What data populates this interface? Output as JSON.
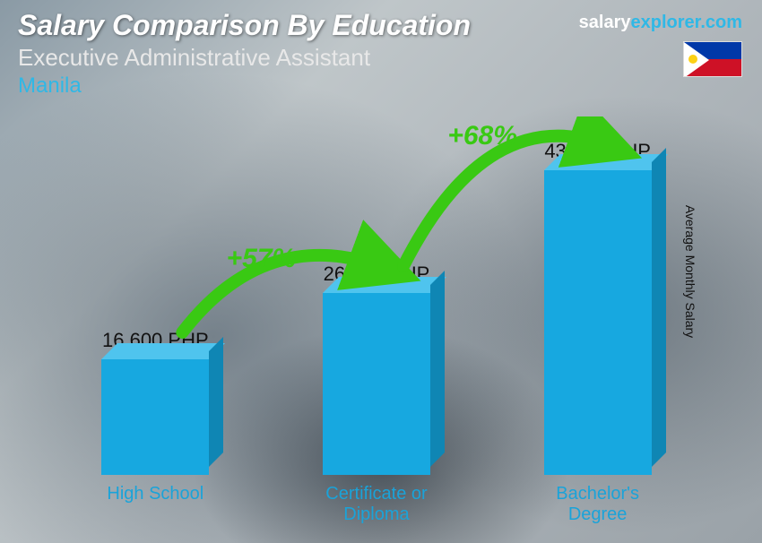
{
  "header": {
    "title": "Salary Comparison By Education",
    "subtitle": "Executive Administrative Assistant",
    "location": "Manila"
  },
  "source": {
    "part1": "salary",
    "part2": "explorer",
    "suffix": ".com"
  },
  "flag": {
    "country": "Philippines"
  },
  "yaxis_label": "Average Monthly Salary",
  "chart": {
    "type": "bar-3d",
    "currency": "PHP",
    "ylim_max": 43800,
    "bar_fill": "#17a8e0",
    "bar_top": "#4fc4ee",
    "bar_side": "#0f86b4",
    "category_color": "#1aa3d9",
    "value_color": "#111111",
    "arrow_color": "#39c913",
    "pct_color": "#39c913",
    "bars": [
      {
        "category": "High School",
        "value": 16600,
        "value_label": "16,600 PHP"
      },
      {
        "category": "Certificate or Diploma",
        "value": 26100,
        "value_label": "26,100 PHP"
      },
      {
        "category": "Bachelor's Degree",
        "value": 43800,
        "value_label": "43,800 PHP"
      }
    ],
    "increases": [
      {
        "from": 0,
        "to": 1,
        "pct": "+57%"
      },
      {
        "from": 1,
        "to": 2,
        "pct": "+68%"
      }
    ],
    "title_fontsize": 32,
    "value_fontsize": 22,
    "category_fontsize": 20,
    "pct_fontsize": 30
  }
}
